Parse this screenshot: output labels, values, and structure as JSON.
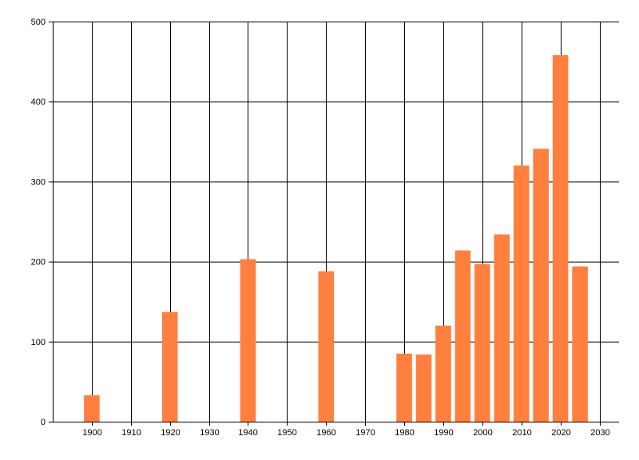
{
  "chart_data": {
    "type": "bar",
    "title": "",
    "xlabel": "",
    "ylabel": "",
    "x": [
      1900,
      1920,
      1940,
      1960,
      1980,
      1985,
      1990,
      1995,
      2000,
      2005,
      2010,
      2015,
      2020,
      2025
    ],
    "values": [
      33,
      137,
      203,
      188,
      85,
      84,
      120,
      214,
      197,
      234,
      320,
      341,
      458,
      194
    ],
    "xlim": [
      1890,
      2035
    ],
    "ylim": [
      0,
      500
    ],
    "xticks": [
      1900,
      1910,
      1920,
      1930,
      1940,
      1950,
      1960,
      1970,
      1980,
      1990,
      2000,
      2010,
      2020,
      2030
    ],
    "yticks": [
      0,
      100,
      200,
      300,
      400,
      500
    ],
    "grid": true,
    "bar_color": "#ff7f3f",
    "grid_color": "#000000"
  }
}
